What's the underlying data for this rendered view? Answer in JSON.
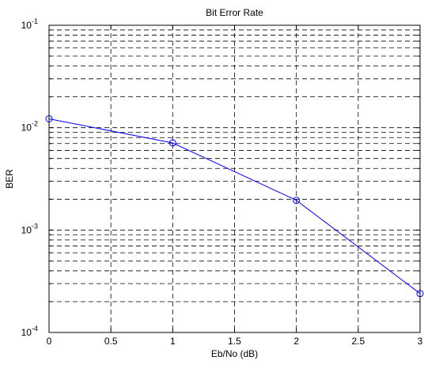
{
  "chart_data": {
    "type": "line",
    "title": "Bit Error Rate",
    "xlabel": "Eb/No (dB)",
    "ylabel": "BER",
    "xlim": [
      0,
      3
    ],
    "ylim": [
      0.0001,
      0.1
    ],
    "yscale": "log",
    "grid": true,
    "x_ticks": [
      0,
      0.5,
      1,
      1.5,
      2,
      2.5,
      3
    ],
    "x_tick_labels": [
      "0",
      "0.5",
      "1",
      "1.5",
      "2",
      "2.5",
      "3"
    ],
    "y_tick_exponents": [
      -4,
      -3,
      -2,
      -1
    ],
    "y_tick_base": "10",
    "series": [
      {
        "x": [
          0,
          1,
          2,
          3
        ],
        "y": [
          0.0122,
          0.0071,
          0.00195,
          0.00024
        ],
        "marker": "circle",
        "color": "#0000ff"
      }
    ],
    "colors": {
      "line": "#0000ff",
      "grid": "#000000",
      "axes": "#000000"
    }
  }
}
